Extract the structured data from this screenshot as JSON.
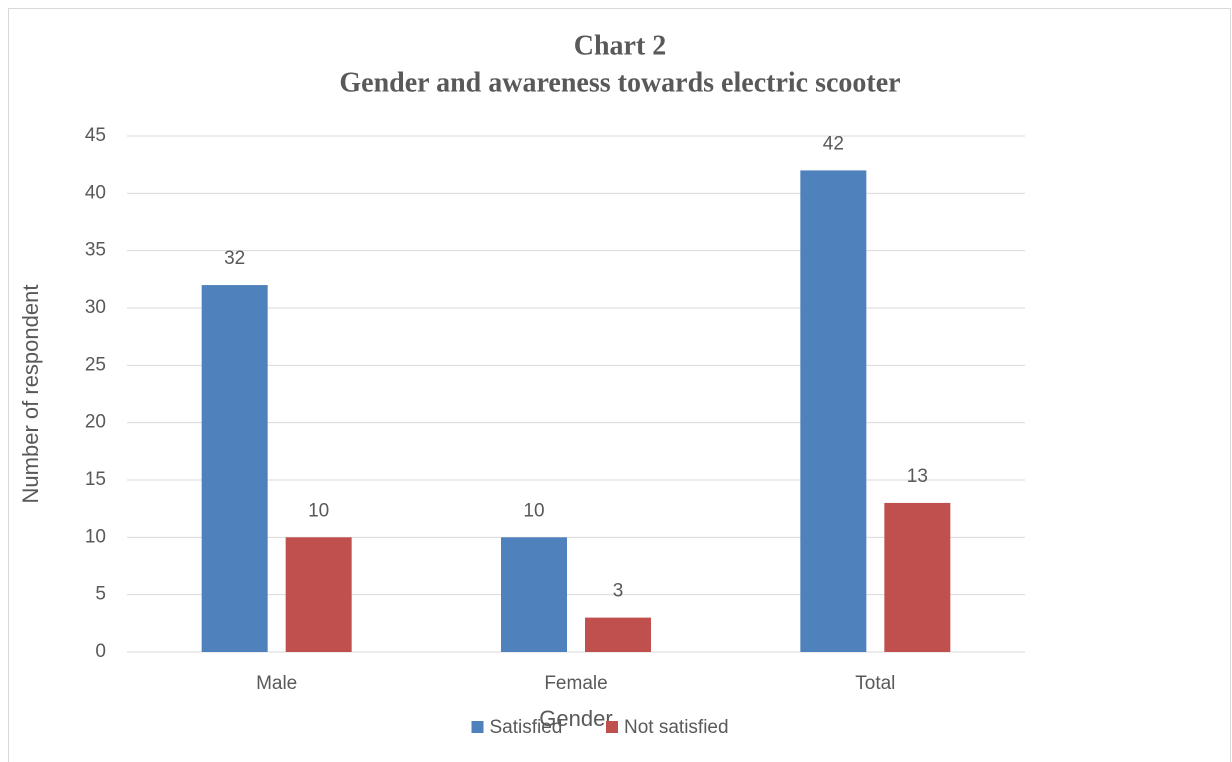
{
  "chart_data": {
    "type": "bar",
    "title": "Chart 2",
    "subtitle": "Gender and awareness towards electric scooter",
    "x_label": "Gender",
    "y_label": "Number of respondent",
    "categories": [
      "Male",
      "Female",
      "Total"
    ],
    "series": [
      {
        "name": "Satisfied",
        "color": "#4f81bd",
        "values": [
          32,
          10,
          42
        ]
      },
      {
        "name": "Not satisfied",
        "color": "#c0504d",
        "values": [
          10,
          3,
          13
        ]
      }
    ],
    "ylim": [
      0,
      45
    ],
    "yticks": [
      0,
      5,
      10,
      15,
      20,
      25,
      30,
      35,
      40,
      45
    ],
    "grid": true,
    "legend": "bottom"
  }
}
